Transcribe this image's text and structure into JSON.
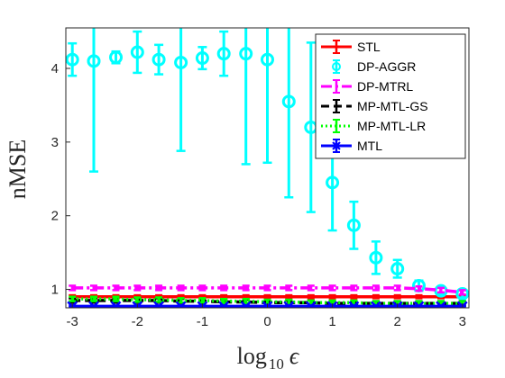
{
  "chart_data": {
    "type": "line",
    "xlabel_base": "log",
    "xlabel_sub": "10",
    "xlabel_var": "ϵ",
    "ylabel": "nMSE",
    "xlim": [
      -3.1,
      3.1
    ],
    "ylim": [
      0.75,
      4.55
    ],
    "xticks": [
      -3,
      -2,
      -1,
      0,
      1,
      2,
      3
    ],
    "yticks": [
      1,
      2,
      3,
      4
    ],
    "grid": false,
    "legend_position": "top-right",
    "x": [
      -3,
      -2.67,
      -2.33,
      -2,
      -1.67,
      -1.33,
      -1,
      -0.67,
      -0.33,
      0,
      0.33,
      0.67,
      1,
      1.33,
      1.67,
      2,
      2.33,
      2.67,
      3
    ],
    "series": [
      {
        "name": "STL",
        "color": "#ff0000",
        "style": "solid",
        "marker": "none",
        "values": [
          0.9,
          0.9,
          0.9,
          0.9,
          0.9,
          0.9,
          0.9,
          0.9,
          0.9,
          0.9,
          0.9,
          0.9,
          0.9,
          0.9,
          0.9,
          0.9,
          0.9,
          0.9,
          0.9
        ],
        "err": [
          0.02,
          0.02,
          0.02,
          0.02,
          0.02,
          0.02,
          0.02,
          0.02,
          0.02,
          0.02,
          0.02,
          0.02,
          0.02,
          0.02,
          0.02,
          0.02,
          0.02,
          0.02,
          0.02
        ]
      },
      {
        "name": "DP-AGGR",
        "color": "#00ffff",
        "style": "none",
        "marker": "circle",
        "values": [
          4.12,
          4.1,
          4.15,
          4.22,
          4.12,
          4.08,
          4.14,
          4.2,
          4.2,
          4.12,
          3.55,
          3.2,
          2.45,
          1.87,
          1.43,
          1.28,
          1.05,
          0.98,
          0.94
        ],
        "err": [
          0.22,
          1.5,
          0.08,
          0.28,
          0.2,
          1.2,
          0.15,
          0.3,
          1.5,
          1.4,
          1.3,
          1.15,
          0.65,
          0.32,
          0.22,
          0.12,
          0.07,
          0.05,
          0.05
        ]
      },
      {
        "name": "DP-MTRL",
        "color": "#ff00ff",
        "style": "dashdot",
        "marker": "none",
        "values": [
          1.02,
          1.02,
          1.02,
          1.02,
          1.02,
          1.02,
          1.02,
          1.02,
          1.02,
          1.02,
          1.02,
          1.02,
          1.02,
          1.02,
          1.02,
          1.02,
          1.01,
          0.99,
          0.96
        ],
        "err": [
          0.03,
          0.03,
          0.03,
          0.03,
          0.03,
          0.03,
          0.03,
          0.03,
          0.03,
          0.03,
          0.03,
          0.03,
          0.03,
          0.03,
          0.03,
          0.03,
          0.03,
          0.03,
          0.03
        ]
      },
      {
        "name": "MP-MTL-GS",
        "color": "#000000",
        "style": "dashed",
        "marker": "none",
        "values": [
          0.85,
          0.85,
          0.85,
          0.85,
          0.85,
          0.84,
          0.84,
          0.83,
          0.83,
          0.82,
          0.82,
          0.82,
          0.81,
          0.81,
          0.81,
          0.81,
          0.81,
          0.81,
          0.81
        ],
        "err": [
          0.03,
          0.03,
          0.03,
          0.03,
          0.03,
          0.03,
          0.03,
          0.03,
          0.03,
          0.03,
          0.03,
          0.03,
          0.03,
          0.03,
          0.03,
          0.03,
          0.03,
          0.03,
          0.03
        ]
      },
      {
        "name": "MP-MTL-LR",
        "color": "#00ff00",
        "style": "dotted",
        "marker": "none",
        "values": [
          0.87,
          0.87,
          0.87,
          0.86,
          0.86,
          0.85,
          0.85,
          0.84,
          0.84,
          0.83,
          0.83,
          0.82,
          0.82,
          0.82,
          0.81,
          0.81,
          0.81,
          0.81,
          0.81
        ],
        "err": [
          0.03,
          0.03,
          0.03,
          0.03,
          0.03,
          0.03,
          0.03,
          0.03,
          0.03,
          0.03,
          0.03,
          0.03,
          0.03,
          0.03,
          0.03,
          0.03,
          0.03,
          0.03,
          0.03
        ]
      },
      {
        "name": "MTL",
        "color": "#0000ff",
        "style": "solid",
        "marker": "x",
        "values": [
          0.77,
          0.77,
          0.77,
          0.77,
          0.77,
          0.77,
          0.77,
          0.77,
          0.77,
          0.77,
          0.77,
          0.77,
          0.77,
          0.77,
          0.77,
          0.77,
          0.77,
          0.77,
          0.77
        ],
        "err": [
          0.01,
          0.01,
          0.01,
          0.01,
          0.01,
          0.01,
          0.01,
          0.01,
          0.01,
          0.01,
          0.01,
          0.01,
          0.01,
          0.01,
          0.01,
          0.01,
          0.01,
          0.01,
          0.01
        ]
      }
    ]
  }
}
